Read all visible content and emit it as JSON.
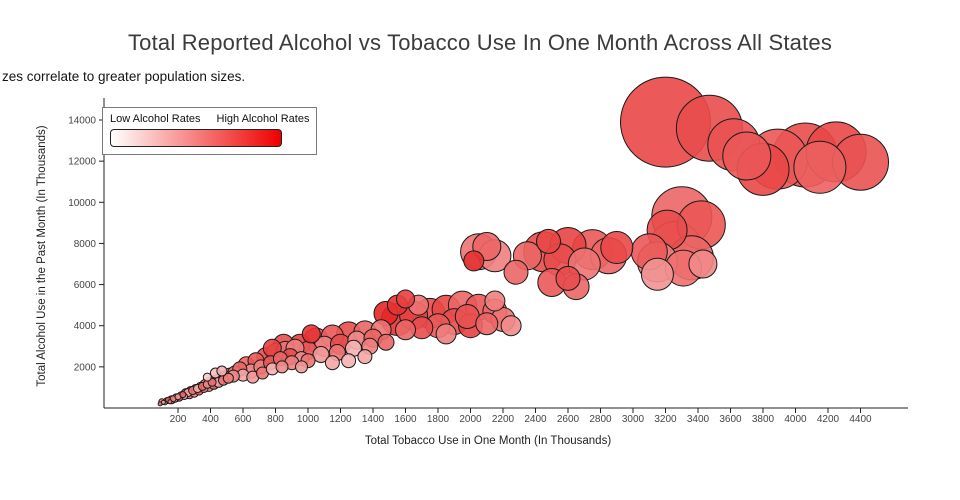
{
  "chart_data": {
    "type": "scatter",
    "title": "Total Reported Alcohol vs Tobacco Use In One Month Across All States",
    "subtitle_visible": "zes correlate to greater population sizes.",
    "xlabel": "Total Tobacco Use in One Month (In Thousands)",
    "ylabel": "Total Alcohol Use in the Past Month (In Thousands)",
    "xlim": [
      0,
      4700
    ],
    "ylim": [
      0,
      14800
    ],
    "x_ticks": [
      200,
      400,
      600,
      800,
      1000,
      1200,
      1400,
      1600,
      1800,
      2000,
      2200,
      2400,
      2600,
      2800,
      3000,
      3200,
      3400,
      3600,
      3800,
      4000,
      4200,
      4400
    ],
    "y_ticks": [
      2000,
      4000,
      6000,
      8000,
      10000,
      12000,
      14000
    ],
    "grid": false,
    "legend": {
      "position": "top-left",
      "low_label": "Low Alcohol Rates",
      "high_label": "High Alcohol Rates",
      "low_color": "#ffffff",
      "high_color": "#ee0000"
    },
    "colors": {
      "bubble_low": "#ffffff",
      "bubble_high": "#e00000",
      "bubble_stroke": "#1a1a1a"
    },
    "size_encoding": "larger bubble size = greater population size",
    "point_format": [
      "x_tobacco_thousands",
      "y_alcohol_thousands",
      "bubble_radius",
      "alcohol_rate_0to1"
    ],
    "points": [
      [
        3200,
        13900,
        45,
        0.72
      ],
      [
        3470,
        13600,
        33,
        0.7
      ],
      [
        3620,
        12800,
        26,
        0.68
      ],
      [
        3890,
        12100,
        30,
        0.66
      ],
      [
        4060,
        12300,
        32,
        0.7
      ],
      [
        4250,
        12450,
        30,
        0.72
      ],
      [
        4400,
        11950,
        28,
        0.68
      ],
      [
        4150,
        11700,
        26,
        0.62
      ],
      [
        3800,
        11600,
        26,
        0.72
      ],
      [
        3700,
        12250,
        24,
        0.66
      ],
      [
        3300,
        9300,
        30,
        0.6
      ],
      [
        3420,
        8900,
        24,
        0.66
      ],
      [
        3210,
        8650,
        20,
        0.7
      ],
      [
        3260,
        7800,
        26,
        0.55
      ],
      [
        3360,
        7300,
        22,
        0.6
      ],
      [
        3150,
        7100,
        20,
        0.5
      ],
      [
        3310,
        6800,
        18,
        0.56
      ],
      [
        3100,
        7600,
        18,
        0.65
      ],
      [
        3150,
        6500,
        16,
        0.42
      ],
      [
        3430,
        7000,
        14,
        0.46
      ],
      [
        2450,
        7600,
        20,
        0.7
      ],
      [
        2600,
        7900,
        18,
        0.74
      ],
      [
        2750,
        7700,
        20,
        0.65
      ],
      [
        2850,
        7400,
        18,
        0.6
      ],
      [
        2550,
        7200,
        16,
        0.7
      ],
      [
        2700,
        7000,
        16,
        0.55
      ],
      [
        2900,
        7800,
        16,
        0.72
      ],
      [
        2350,
        7400,
        14,
        0.6
      ],
      [
        2480,
        8100,
        12,
        0.72
      ],
      [
        2050,
        7600,
        18,
        0.55
      ],
      [
        2150,
        7400,
        16,
        0.5
      ],
      [
        2100,
        7850,
        14,
        0.6
      ],
      [
        2020,
        7150,
        10,
        0.8
      ],
      [
        2500,
        6100,
        14,
        0.65
      ],
      [
        2650,
        5900,
        13,
        0.6
      ],
      [
        2600,
        6300,
        12,
        0.7
      ],
      [
        2280,
        6600,
        12,
        0.6
      ],
      [
        1550,
        4300,
        16,
        0.8
      ],
      [
        1650,
        4500,
        14,
        0.75
      ],
      [
        1750,
        4600,
        15,
        0.7
      ],
      [
        1850,
        4800,
        14,
        0.72
      ],
      [
        1950,
        5000,
        14,
        0.6
      ],
      [
        2050,
        4900,
        13,
        0.65
      ],
      [
        2150,
        4700,
        12,
        0.6
      ],
      [
        2200,
        4300,
        12,
        0.55
      ],
      [
        2100,
        4100,
        11,
        0.6
      ],
      [
        2000,
        4000,
        12,
        0.75
      ],
      [
        1900,
        4200,
        13,
        0.7
      ],
      [
        1800,
        4000,
        12,
        0.65
      ],
      [
        1700,
        3900,
        11,
        0.7
      ],
      [
        1600,
        3800,
        10,
        0.6
      ],
      [
        1480,
        4600,
        12,
        0.85
      ],
      [
        1550,
        5000,
        10,
        0.8
      ],
      [
        2150,
        5200,
        10,
        0.5
      ],
      [
        1680,
        5000,
        10,
        0.55
      ],
      [
        1850,
        3600,
        10,
        0.5
      ],
      [
        2250,
        4000,
        10,
        0.45
      ],
      [
        1980,
        4450,
        12,
        0.68
      ],
      [
        1600,
        5300,
        9,
        0.75
      ],
      [
        1050,
        3300,
        12,
        0.6
      ],
      [
        1150,
        3500,
        11,
        0.65
      ],
      [
        1250,
        3600,
        12,
        0.7
      ],
      [
        1350,
        3700,
        11,
        0.6
      ],
      [
        1450,
        3800,
        10,
        0.55
      ],
      [
        1100,
        3000,
        10,
        0.5
      ],
      [
        1200,
        3100,
        10,
        0.7
      ],
      [
        1300,
        3300,
        9,
        0.45
      ],
      [
        1400,
        3400,
        9,
        0.6
      ],
      [
        1000,
        2800,
        9,
        0.65
      ],
      [
        1080,
        2600,
        8,
        0.4
      ],
      [
        1180,
        2700,
        8,
        0.55
      ],
      [
        1280,
        2900,
        8,
        0.3
      ],
      [
        1380,
        3000,
        8,
        0.5
      ],
      [
        1480,
        3200,
        8,
        0.6
      ],
      [
        950,
        3100,
        10,
        0.75
      ],
      [
        1020,
        3600,
        9,
        0.8
      ],
      [
        960,
        2400,
        7,
        0.45
      ],
      [
        1350,
        2500,
        7,
        0.35
      ],
      [
        1250,
        2300,
        7,
        0.3
      ],
      [
        1150,
        2200,
        7,
        0.35
      ],
      [
        620,
        2100,
        8,
        0.6
      ],
      [
        680,
        2300,
        8,
        0.65
      ],
      [
        740,
        2500,
        9,
        0.7
      ],
      [
        800,
        2700,
        9,
        0.6
      ],
      [
        860,
        2800,
        9,
        0.55
      ],
      [
        920,
        2900,
        9,
        0.5
      ],
      [
        650,
        1800,
        7,
        0.45
      ],
      [
        710,
        2000,
        7,
        0.5
      ],
      [
        770,
        2200,
        7,
        0.65
      ],
      [
        830,
        2400,
        7,
        0.6
      ],
      [
        890,
        2500,
        8,
        0.7
      ],
      [
        600,
        1600,
        6,
        0.35
      ],
      [
        660,
        1500,
        6,
        0.4
      ],
      [
        720,
        1700,
        6,
        0.55
      ],
      [
        780,
        1900,
        6,
        0.3
      ],
      [
        840,
        2000,
        6,
        0.45
      ],
      [
        900,
        2200,
        7,
        0.5
      ],
      [
        960,
        2000,
        6,
        0.4
      ],
      [
        1000,
        2300,
        7,
        0.55
      ],
      [
        850,
        3100,
        10,
        0.7
      ],
      [
        780,
        2900,
        9,
        0.75
      ],
      [
        100,
        300,
        3,
        0.5
      ],
      [
        130,
        350,
        3,
        0.6
      ],
      [
        160,
        400,
        4,
        0.45
      ],
      [
        190,
        500,
        4,
        0.55
      ],
      [
        220,
        600,
        4,
        0.5
      ],
      [
        250,
        700,
        5,
        0.65
      ],
      [
        280,
        800,
        5,
        0.6
      ],
      [
        310,
        900,
        5,
        0.4
      ],
      [
        340,
        1000,
        5,
        0.55
      ],
      [
        370,
        1100,
        6,
        0.6
      ],
      [
        400,
        1200,
        6,
        0.5
      ],
      [
        430,
        1300,
        6,
        0.65
      ],
      [
        460,
        1400,
        6,
        0.45
      ],
      [
        490,
        1500,
        6,
        0.6
      ],
      [
        520,
        1600,
        7,
        0.55
      ],
      [
        550,
        1700,
        7,
        0.5
      ],
      [
        580,
        1900,
        7,
        0.6
      ],
      [
        120,
        250,
        2,
        0.4
      ],
      [
        150,
        300,
        2,
        0.5
      ],
      [
        180,
        420,
        3,
        0.35
      ],
      [
        210,
        480,
        3,
        0.6
      ],
      [
        240,
        560,
        3,
        0.3
      ],
      [
        270,
        640,
        4,
        0.55
      ],
      [
        300,
        720,
        4,
        0.45
      ],
      [
        330,
        820,
        4,
        0.65
      ],
      [
        360,
        950,
        4,
        0.5
      ],
      [
        390,
        1050,
        5,
        0.4
      ],
      [
        420,
        1150,
        5,
        0.6
      ],
      [
        450,
        1250,
        5,
        0.35
      ],
      [
        480,
        1350,
        5,
        0.55
      ],
      [
        510,
        1450,
        5,
        0.5
      ],
      [
        540,
        1550,
        6,
        0.45
      ],
      [
        90,
        200,
        2,
        0.55
      ],
      [
        110,
        280,
        2,
        0.35
      ],
      [
        140,
        380,
        3,
        0.65
      ],
      [
        170,
        450,
        3,
        0.5
      ],
      [
        200,
        550,
        3,
        0.4
      ],
      [
        230,
        650,
        3,
        0.6
      ],
      [
        260,
        750,
        4,
        0.35
      ],
      [
        290,
        850,
        4,
        0.55
      ],
      [
        320,
        950,
        4,
        0.3
      ],
      [
        350,
        1050,
        4,
        0.6
      ],
      [
        380,
        1150,
        4,
        0.45
      ],
      [
        410,
        1250,
        4,
        0.55
      ],
      [
        430,
        1700,
        5,
        0.25
      ],
      [
        470,
        1800,
        5,
        0.3
      ],
      [
        380,
        1500,
        4,
        0.2
      ]
    ]
  }
}
